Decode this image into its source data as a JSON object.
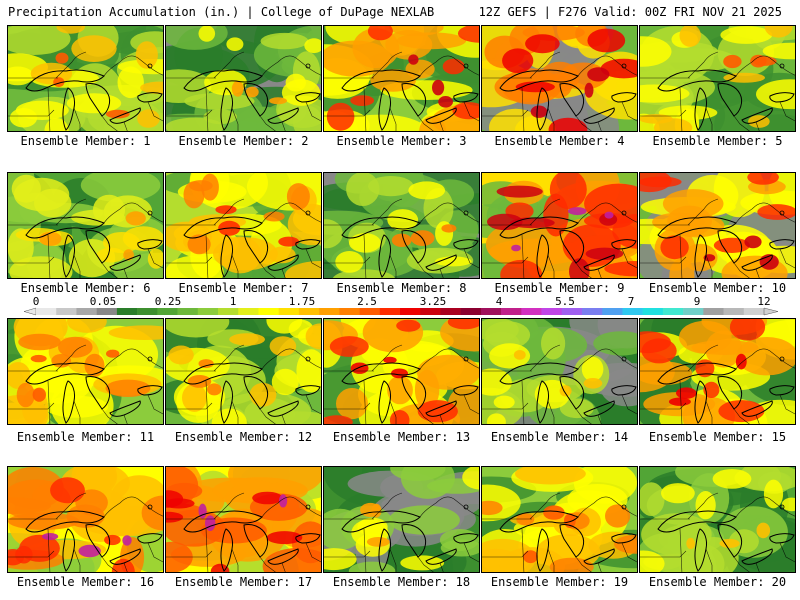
{
  "header": {
    "left_title": "Precipitation Accumulation (in.) | College of DuPage NEXLAB",
    "right_title": "12Z GEFS | F276 Valid: 00Z FRI NOV 21 2025"
  },
  "colorbar": {
    "labels": [
      "0",
      "0.05",
      "0.25",
      "1",
      "1.75",
      "2.5",
      "3.25",
      "4",
      "5.5",
      "7",
      "9",
      "12"
    ],
    "colors": [
      "#e8e8e8",
      "#c8c8c8",
      "#a8a8a8",
      "#888888",
      "#2a7d2a",
      "#3d8f2f",
      "#52a536",
      "#6db83c",
      "#8ccc3c",
      "#b4dd2e",
      "#e3ef1a",
      "#ffff00",
      "#ffe000",
      "#ffc000",
      "#ffa000",
      "#ff7f00",
      "#ff5a00",
      "#ff2a00",
      "#ee0000",
      "#cc0010",
      "#aa0020",
      "#8b0030",
      "#a0105c",
      "#c0208a",
      "#d230c0",
      "#c045e6",
      "#a060f0",
      "#7a7ef0",
      "#50a0f0",
      "#30c8f0",
      "#20e0e0",
      "#40e8d0",
      "#70d0c8",
      "#a0a0a0",
      "#b8b8b8",
      "#d0d0d0"
    ]
  },
  "members": [
    {
      "label": "Ensemble Member: 1",
      "palette": [
        "#3d8f2f",
        "#6db83c",
        "#b4dd2e",
        "#ffff00",
        "#ffc000"
      ],
      "heavy": "#ff5a00"
    },
    {
      "label": "Ensemble Member: 2",
      "palette": [
        "#2a7d2a",
        "#888888",
        "#6db83c",
        "#b4dd2e",
        "#ffff00"
      ],
      "heavy": "#ffa000"
    },
    {
      "label": "Ensemble Member: 3",
      "palette": [
        "#3d8f2f",
        "#8ccc3c",
        "#ffff00",
        "#ffa000",
        "#ff2a00"
      ],
      "heavy": "#cc0010"
    },
    {
      "label": "Ensemble Member: 4",
      "palette": [
        "#888888",
        "#6db83c",
        "#ffe000",
        "#ff7f00",
        "#ee0000"
      ],
      "heavy": "#cc0010"
    },
    {
      "label": "Ensemble Member: 5",
      "palette": [
        "#3d8f2f",
        "#6db83c",
        "#b4dd2e",
        "#ffff00",
        "#ffc000"
      ],
      "heavy": "#ff5a00"
    },
    {
      "label": "Ensemble Member: 6",
      "palette": [
        "#2a7d2a",
        "#52a536",
        "#8ccc3c",
        "#e3ef1a",
        "#ffe000"
      ],
      "heavy": "#ffa000"
    },
    {
      "label": "Ensemble Member: 7",
      "palette": [
        "#52a536",
        "#b4dd2e",
        "#ffff00",
        "#ffc000",
        "#ff7f00"
      ],
      "heavy": "#ff2a00"
    },
    {
      "label": "Ensemble Member: 8",
      "palette": [
        "#2a7d2a",
        "#888888",
        "#6db83c",
        "#b4dd2e",
        "#ffff00"
      ],
      "heavy": "#ff7f00"
    },
    {
      "label": "Ensemble Member: 9",
      "palette": [
        "#6db83c",
        "#ffe000",
        "#ffa000",
        "#ff2a00",
        "#cc0010"
      ],
      "heavy": "#c020a0"
    },
    {
      "label": "Ensemble Member: 10",
      "palette": [
        "#888888",
        "#6db83c",
        "#ffff00",
        "#ffa000",
        "#ff2a00"
      ],
      "heavy": "#cc0010"
    },
    {
      "label": "Ensemble Member: 11",
      "palette": [
        "#3d8f2f",
        "#8ccc3c",
        "#ffff00",
        "#ffc000",
        "#ff7f00"
      ],
      "heavy": "#ff5a00"
    },
    {
      "label": "Ensemble Member: 12",
      "palette": [
        "#2a7d2a",
        "#6db83c",
        "#b4dd2e",
        "#ffff00",
        "#ffc000"
      ],
      "heavy": "#ff7f00"
    },
    {
      "label": "Ensemble Member: 13",
      "palette": [
        "#3d8f2f",
        "#8ccc3c",
        "#ffff00",
        "#ffa000",
        "#ff2a00"
      ],
      "heavy": "#ee0000"
    },
    {
      "label": "Ensemble Member: 14",
      "palette": [
        "#888888",
        "#2a7d2a",
        "#6db83c",
        "#b4dd2e",
        "#ffff00"
      ],
      "heavy": "#ffc000"
    },
    {
      "label": "Ensemble Member: 15",
      "palette": [
        "#2a7d2a",
        "#6db83c",
        "#ffff00",
        "#ffa000",
        "#ff2a00"
      ],
      "heavy": "#ee0000"
    },
    {
      "label": "Ensemble Member: 16",
      "palette": [
        "#8ccc3c",
        "#ffff00",
        "#ffc000",
        "#ff7f00",
        "#ff2a00"
      ],
      "heavy": "#c020a0"
    },
    {
      "label": "Ensemble Member: 17",
      "palette": [
        "#b4dd2e",
        "#ffff00",
        "#ffa000",
        "#ff5a00",
        "#ee0000"
      ],
      "heavy": "#c020a0"
    },
    {
      "label": "Ensemble Member: 18",
      "palette": [
        "#2a7d2a",
        "#3d8f2f",
        "#888888",
        "#8ccc3c",
        "#ffff00"
      ],
      "heavy": "#ffa000"
    },
    {
      "label": "Ensemble Member: 19",
      "palette": [
        "#3d8f2f",
        "#8ccc3c",
        "#ffff00",
        "#ffc000",
        "#ff7f00"
      ],
      "heavy": "#ff5a00"
    },
    {
      "label": "Ensemble Member: 20",
      "palette": [
        "#2a7d2a",
        "#52a536",
        "#8ccc3c",
        "#b4dd2e",
        "#ffff00"
      ],
      "heavy": "#ffc000"
    }
  ]
}
